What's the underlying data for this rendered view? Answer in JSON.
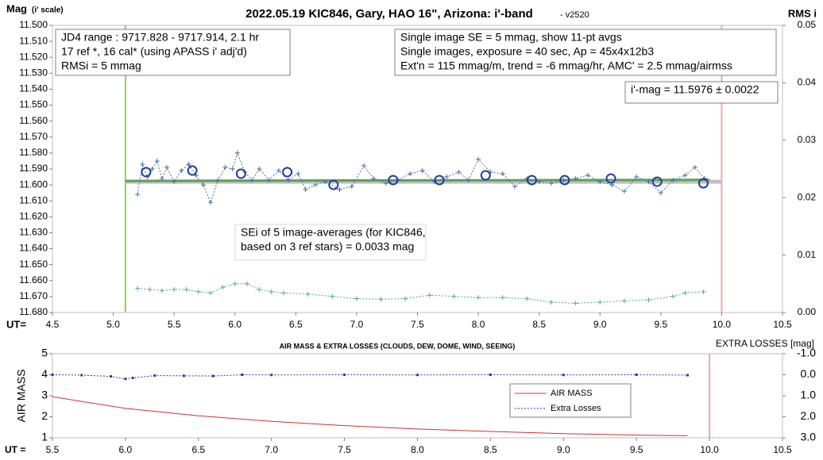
{
  "chart_data": [
    {
      "type": "line",
      "title": "2022.05.19 KIC846, Gary, HAO 16\", Arizona: i'-band",
      "subtitle": "- v2520",
      "ylabel": "Mag",
      "ylabel_note": "(i' scale)",
      "y2label": "RMS i",
      "xlabel": "UT=",
      "xlim": [
        4.5,
        10.5
      ],
      "xticks": [
        4.5,
        {
          "value": 5,
          "label": "5.0"
        },
        5.5,
        {
          "value": 6,
          "label": "6.0"
        },
        6.5,
        {
          "value": 7,
          "label": "7.0"
        },
        7.5,
        {
          "value": 8,
          "label": "8.0"
        },
        8.5,
        {
          "value": 9,
          "label": "9.0"
        },
        9.5,
        {
          "value": 10,
          "label": "10.0"
        },
        10.5
      ],
      "ylim": [
        11.5,
        11.68
      ],
      "y_inverted": true,
      "yticks": [
        {
          "value": 11.5,
          "label": "11.500"
        },
        {
          "value": 11.51,
          "label": "11.510"
        },
        {
          "value": 11.52,
          "label": "11.520"
        },
        {
          "value": 11.53,
          "label": "11.530"
        },
        {
          "value": 11.54,
          "label": "11.540"
        },
        {
          "value": 11.55,
          "label": "11.550"
        },
        {
          "value": 11.56,
          "label": "11.560"
        },
        {
          "value": 11.57,
          "label": "11.570"
        },
        {
          "value": 11.58,
          "label": "11.580"
        },
        {
          "value": 11.59,
          "label": "11.590"
        },
        {
          "value": 11.6,
          "label": "11.600"
        },
        {
          "value": 11.61,
          "label": "11.610"
        },
        {
          "value": 11.62,
          "label": "11.620"
        },
        {
          "value": 11.63,
          "label": "11.630"
        },
        {
          "value": 11.64,
          "label": "11.640"
        },
        {
          "value": 11.65,
          "label": "11.650"
        },
        {
          "value": 11.66,
          "label": "11.660"
        },
        {
          "value": 11.67,
          "label": "11.670"
        },
        {
          "value": 11.68,
          "label": "11.680"
        }
      ],
      "y2lim": [
        0,
        0.05
      ],
      "y2ticks": [
        {
          "value": 0,
          "label": "0.00"
        },
        0.01,
        0.02,
        0.03,
        0.04,
        0.05
      ],
      "vlines": [
        {
          "x": 5.1,
          "color": "#92d050"
        },
        {
          "x": 10.0,
          "color": "#f4a6a6"
        }
      ],
      "series": [
        {
          "color": "#c0c0c0",
          "width": 5,
          "x": [
            5.1,
            10.0
          ],
          "values": [
            11.598,
            11.598
          ]
        },
        {
          "color": "#5f9e5f",
          "width": 3,
          "x": [
            5.1,
            9.9
          ],
          "values": [
            11.5975,
            11.5968
          ]
        },
        {
          "color": "#4a6fa5",
          "dash": true,
          "marker": "plus",
          "x": [
            5.2,
            5.24,
            5.28,
            5.32,
            5.36,
            5.4,
            5.44,
            5.5,
            5.56,
            5.62,
            5.68,
            5.74,
            5.8,
            5.86,
            5.92,
            5.98,
            6.02,
            6.08,
            6.14,
            6.2,
            6.28,
            6.36,
            6.44,
            6.52,
            6.58,
            6.66,
            6.74,
            6.86,
            6.96,
            7.06,
            7.14,
            7.24,
            7.34,
            7.44,
            7.54,
            7.64,
            7.74,
            7.84,
            7.92,
            8.0,
            8.1,
            8.2,
            8.3,
            8.4,
            8.5,
            8.6,
            8.7,
            8.8,
            8.9,
            9.0,
            9.1,
            9.2,
            9.3,
            9.4,
            9.5,
            9.6,
            9.7,
            9.78,
            9.86
          ],
          "values": [
            11.606,
            11.587,
            11.595,
            11.59,
            11.585,
            11.596,
            11.589,
            11.598,
            11.591,
            11.587,
            11.594,
            11.6,
            11.611,
            11.597,
            11.589,
            11.59,
            11.58,
            11.592,
            11.597,
            11.59,
            11.597,
            11.591,
            11.597,
            11.593,
            11.603,
            11.6,
            11.598,
            11.603,
            11.601,
            11.588,
            11.596,
            11.599,
            11.597,
            11.593,
            11.591,
            11.598,
            11.595,
            11.592,
            11.597,
            11.584,
            11.592,
            11.593,
            11.601,
            11.596,
            11.598,
            11.599,
            11.597,
            11.596,
            11.594,
            11.598,
            11.6,
            11.604,
            11.595,
            11.598,
            11.605,
            11.597,
            11.594,
            11.589,
            11.596
          ]
        },
        {
          "color": "#1f3f99",
          "marker": "circle",
          "x": [
            5.27,
            5.65,
            6.05,
            6.43,
            6.81,
            7.3,
            7.68,
            8.06,
            8.44,
            8.71,
            9.09,
            9.47,
            9.85
          ],
          "values": [
            11.592,
            11.591,
            11.593,
            11.592,
            11.6,
            11.597,
            11.597,
            11.594,
            11.597,
            11.597,
            11.596,
            11.598,
            11.599
          ]
        },
        {
          "color": "#5aa3a8",
          "dash": true,
          "marker": "plus",
          "axis": "y2",
          "x": [
            5.2,
            5.3,
            5.4,
            5.5,
            5.6,
            5.7,
            5.8,
            5.9,
            6.0,
            6.1,
            6.2,
            6.3,
            6.4,
            6.6,
            6.8,
            7.0,
            7.2,
            7.4,
            7.6,
            7.8,
            8.0,
            8.2,
            8.4,
            8.6,
            8.8,
            9.0,
            9.2,
            9.4,
            9.6,
            9.7,
            9.85
          ],
          "values": [
            0.0042,
            0.004,
            0.0038,
            0.004,
            0.004,
            0.0036,
            0.0034,
            0.0044,
            0.005,
            0.005,
            0.004,
            0.0036,
            0.0034,
            0.0032,
            0.0028,
            0.0024,
            0.0023,
            0.0024,
            0.003,
            0.0028,
            0.0026,
            0.0026,
            0.0024,
            0.0018,
            0.0016,
            0.0018,
            0.002,
            0.0022,
            0.0028,
            0.0034,
            0.0036
          ]
        }
      ],
      "annotations": [
        {
          "lines": [
            "JD4 range : 9717.828 - 9717.914, 2.1  hr",
            "17 ref *, 16 cal* (using APASS i' adj'd)",
            "RMSi = 5 mmag"
          ]
        },
        {
          "lines": [
            "Single image SE = 5 mmag, show 11-pt avgs",
            "Single images, exposure = 40 sec, Ap = 45x4x12b3",
            "Ext'n = 115 mmag/m, trend = -6 mmag/hr, AMC' = 2.5 mmag/airmss"
          ]
        },
        {
          "lines": [
            "i'-mag = 11.5976 ± 0.0022"
          ]
        },
        {
          "lines": [
            "SEi of 5 image-averages (for KIC846,",
            "based on 3 ref stars) = 0.0033 mag"
          ]
        }
      ]
    },
    {
      "type": "line",
      "title": "AIR MASS & EXTRA LOSSES (CLOUDS, DEW, DOME, WIND, SEEING)",
      "xlabel": "UT =",
      "ylabel": "AIR MASS",
      "y2label": "EXTRA LOSSES [mag]",
      "xlim": [
        5.5,
        10.5
      ],
      "xticks": [
        5.5,
        {
          "value": 6,
          "label": "6.0"
        },
        6.5,
        {
          "value": 7,
          "label": "7.0"
        },
        7.5,
        {
          "value": 8,
          "label": "8.0"
        },
        8.5,
        {
          "value": 9,
          "label": "9.0"
        },
        9.5,
        {
          "value": 10,
          "label": "10.0"
        },
        10.5
      ],
      "ylim": [
        1,
        5
      ],
      "yticks": [
        1,
        2,
        3,
        4,
        5
      ],
      "y2lim": [
        -1,
        3
      ],
      "y2_inverted": true,
      "y2ticks": [
        {
          "value": -1,
          "label": "-1.0"
        },
        {
          "value": 0,
          "label": "0.0"
        },
        {
          "value": 1,
          "label": "1.0"
        },
        {
          "value": 2,
          "label": "2.0"
        },
        {
          "value": 3,
          "label": "3.0"
        }
      ],
      "vlines": [
        {
          "x": 10.0,
          "color": "#f4a6a6"
        }
      ],
      "series": [
        {
          "name": "AIR MASS",
          "color": "#d62f2f",
          "x": [
            5.5,
            6.0,
            6.5,
            7.0,
            7.5,
            8.0,
            8.5,
            9.0,
            9.5,
            9.85
          ],
          "values": [
            2.95,
            2.4,
            2.05,
            1.78,
            1.58,
            1.42,
            1.3,
            1.2,
            1.13,
            1.1
          ]
        },
        {
          "name": "Extra Losses",
          "color": "#1f3f99",
          "dash": true,
          "marker": "dot",
          "axis": "y2",
          "x": [
            5.5,
            5.7,
            5.9,
            6.0,
            6.05,
            6.2,
            6.4,
            6.6,
            6.8,
            7.0,
            7.5,
            8.0,
            8.5,
            9.0,
            9.5,
            9.85
          ],
          "values": [
            0.0,
            0.02,
            0.08,
            0.2,
            0.15,
            0.04,
            0.05,
            0.06,
            0.0,
            0.01,
            0.0,
            0.01,
            0.0,
            0.01,
            0.0,
            0.02
          ]
        }
      ]
    }
  ]
}
